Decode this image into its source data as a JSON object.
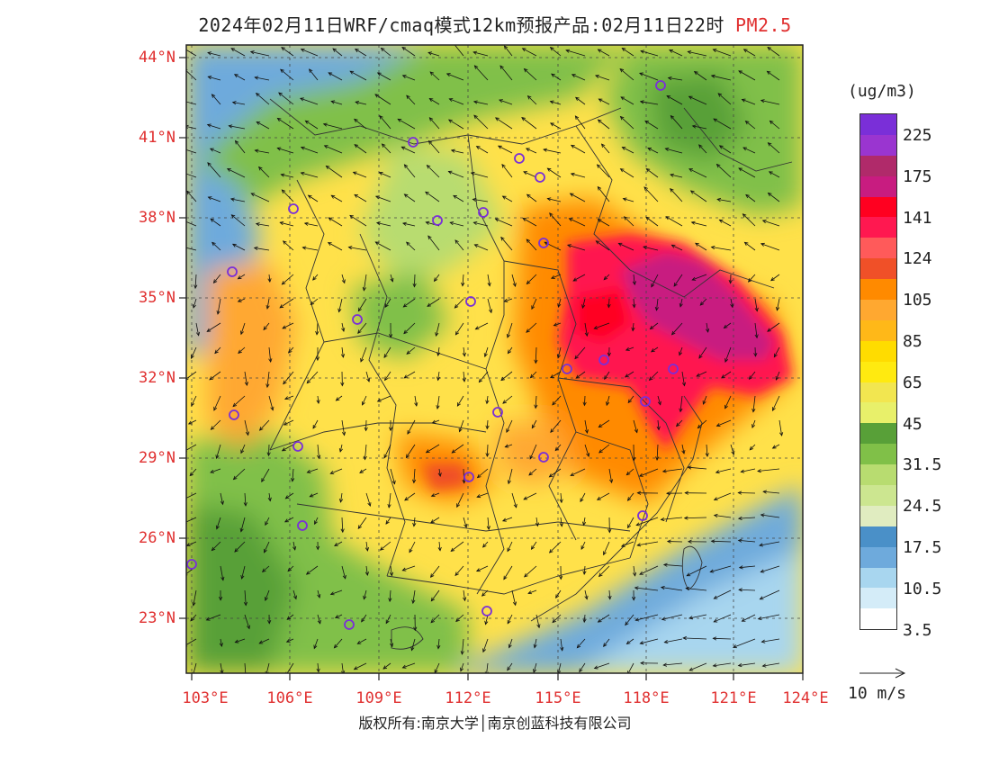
{
  "title": {
    "main": "2024年02月11日WRF/cmaq模式12km预报产品:02月11日22时",
    "pollutant": "PM2.5"
  },
  "latitude_labels": [
    "44°N",
    "41°N",
    "38°N",
    "35°N",
    "32°N",
    "29°N",
    "26°N",
    "23°N"
  ],
  "longitude_labels": [
    "103°E",
    "106°E",
    "109°E",
    "112°E",
    "115°E",
    "118°E",
    "121°E",
    "124°E"
  ],
  "colorbar": {
    "unit": "(ug/m3)",
    "labels": [
      "225",
      "175",
      "141",
      "124",
      "105",
      "85",
      "65",
      "45",
      "31.5",
      "24.5",
      "17.5",
      "10.5",
      "3.5"
    ],
    "colors": [
      "#7a2fd8",
      "#9a35d0",
      "#b02a6a",
      "#c81c80",
      "#ff0020",
      "#ff1850",
      "#ff5a5a",
      "#f05028",
      "#ff8a00",
      "#ffa830",
      "#ffb818",
      "#ffdc00",
      "#ffea10",
      "#f2e650",
      "#e8f06a",
      "#58a038",
      "#80c048",
      "#b8dc70",
      "#cce690",
      "#e0ecc0",
      "#4a90c8",
      "#6eaadc",
      "#a8d6ef",
      "#d4ecf8",
      "#ffffff"
    ]
  },
  "wind_legend": "10  m/s",
  "credit": "版权所有:南京大学│南京创蓝科技有限公司",
  "map_colors": {
    "frame": "#222222",
    "city_marker": "#7a2fd8",
    "boundary": "#333333"
  }
}
